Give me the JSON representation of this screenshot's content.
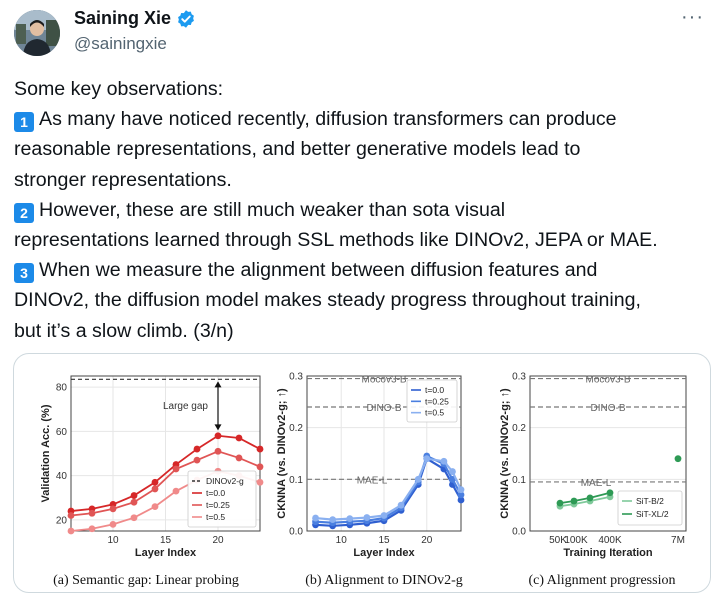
{
  "author": {
    "display_name": "Saining Xie",
    "handle": "@sainingxie",
    "more_label": "···"
  },
  "tweet": {
    "lines": [
      "Some key observations:",
      "As many have noticed recently, diffusion transformers can produce",
      "reasonable representations, and better generative models lead to",
      "stronger representations.",
      "However, these are still much weaker than sota visual",
      "representations learned through SSL methods like DINOv2, JEPA or MAE.",
      "When we measure the alignment between diffusion features and",
      "DINOv2, the diffusion model makes steady progress throughout training,",
      "but it’s a slow climb. (3/n)"
    ],
    "keycaps": [
      "1",
      "2",
      "3"
    ]
  },
  "colors": {
    "verified": "#1d9bf0",
    "keycap": "#1c8ae8",
    "red_dark": "#d62728",
    "red_mid": "#e05555",
    "red_light": "#f08a8a",
    "blue_dark": "#2f5fd0",
    "blue_mid": "#4a7fe0",
    "blue_light": "#8ab0f0",
    "green_light": "#7fc99a",
    "green_dark": "#2e9a55"
  },
  "chart_data": [
    {
      "type": "line",
      "caption": "(a) Semantic gap: Linear probing",
      "xlabel": "Layer Index",
      "ylabel": "Validation Acc. (%)",
      "xlim": [
        6,
        24
      ],
      "ylim": [
        15,
        85
      ],
      "xticks": [
        10,
        15,
        20
      ],
      "yticks": [
        20,
        40,
        60,
        80
      ],
      "annotation": "Large gap",
      "legend": [
        "DINOv2-g",
        "t=0.0",
        "t=0.25",
        "t=0.5"
      ],
      "reference": {
        "name": "DINOv2-g",
        "value": 83.5
      },
      "x": [
        6,
        8,
        10,
        12,
        14,
        16,
        18,
        20,
        22,
        24
      ],
      "series": [
        {
          "name": "t=0.0",
          "values": [
            24,
            25,
            27,
            31,
            37,
            45,
            52,
            58,
            57,
            52
          ]
        },
        {
          "name": "t=0.25",
          "values": [
            22,
            23,
            25,
            28,
            34,
            43,
            47,
            51,
            48,
            44
          ]
        },
        {
          "name": "t=0.5",
          "values": [
            15,
            16,
            18,
            21,
            26,
            33,
            38,
            42,
            40,
            37
          ]
        }
      ],
      "grid": true,
      "legend_placement": "bottom-right"
    },
    {
      "type": "line",
      "caption": "(b) Alignment to DINOv2-g",
      "xlabel": "Layer Index",
      "ylabel": "CKNNA (vs. DINOv2-g; ↑)",
      "xlim": [
        6,
        24
      ],
      "ylim": [
        0,
        0.3
      ],
      "xticks": [
        10,
        15,
        20
      ],
      "yticks": [
        0.0,
        0.1,
        0.2,
        0.3
      ],
      "ytick_labels": [
        "0.0",
        "0.1",
        "0.2",
        "0.3"
      ],
      "legend": [
        "t=0.0",
        "t=0.25",
        "t=0.5"
      ],
      "references": [
        {
          "name": "Mocov3-B",
          "value": 0.295
        },
        {
          "name": "DINO-B",
          "value": 0.24
        },
        {
          "name": "MAE-L",
          "value": 0.1
        }
      ],
      "x": [
        7,
        9,
        11,
        13,
        15,
        17,
        19,
        20,
        22,
        23,
        24
      ],
      "series": [
        {
          "name": "t=0.0",
          "values": [
            0.012,
            0.01,
            0.012,
            0.015,
            0.02,
            0.04,
            0.09,
            0.14,
            0.12,
            0.09,
            0.06
          ]
        },
        {
          "name": "t=0.25",
          "values": [
            0.018,
            0.016,
            0.018,
            0.02,
            0.025,
            0.045,
            0.095,
            0.145,
            0.13,
            0.1,
            0.07
          ]
        },
        {
          "name": "t=0.5",
          "values": [
            0.025,
            0.022,
            0.024,
            0.026,
            0.03,
            0.05,
            0.1,
            0.14,
            0.135,
            0.115,
            0.08
          ]
        }
      ],
      "grid": true,
      "legend_placement": "top-right"
    },
    {
      "type": "line",
      "caption": "(c) Alignment progression",
      "xlabel": "Training Iteration",
      "ylabel": "CKNNA (vs. DINOv2-g; ↑)",
      "ylim": [
        0,
        0.3
      ],
      "xticks": [
        "50K",
        "100K",
        "400K",
        "7M"
      ],
      "yticks": [
        0.0,
        0.1,
        0.2,
        0.3
      ],
      "ytick_labels": [
        "0.0",
        "0.1",
        "0.2",
        "0.3"
      ],
      "legend": [
        "SiT-B/2",
        "SiT-XL/2"
      ],
      "references": [
        {
          "name": "Mocov3-B",
          "value": 0.295
        },
        {
          "name": "DINO-B",
          "value": 0.24
        },
        {
          "name": "MAE-L",
          "value": 0.095
        }
      ],
      "x": [
        "50K",
        "100K",
        "200K",
        "400K",
        "7M"
      ],
      "series": [
        {
          "name": "SiT-B/2",
          "values": [
            0.048,
            0.052,
            0.058,
            0.066,
            null
          ]
        },
        {
          "name": "SiT-XL/2",
          "values": [
            0.054,
            0.058,
            0.064,
            0.074,
            0.14
          ]
        }
      ],
      "grid": true,
      "legend_placement": "bottom-right"
    }
  ]
}
